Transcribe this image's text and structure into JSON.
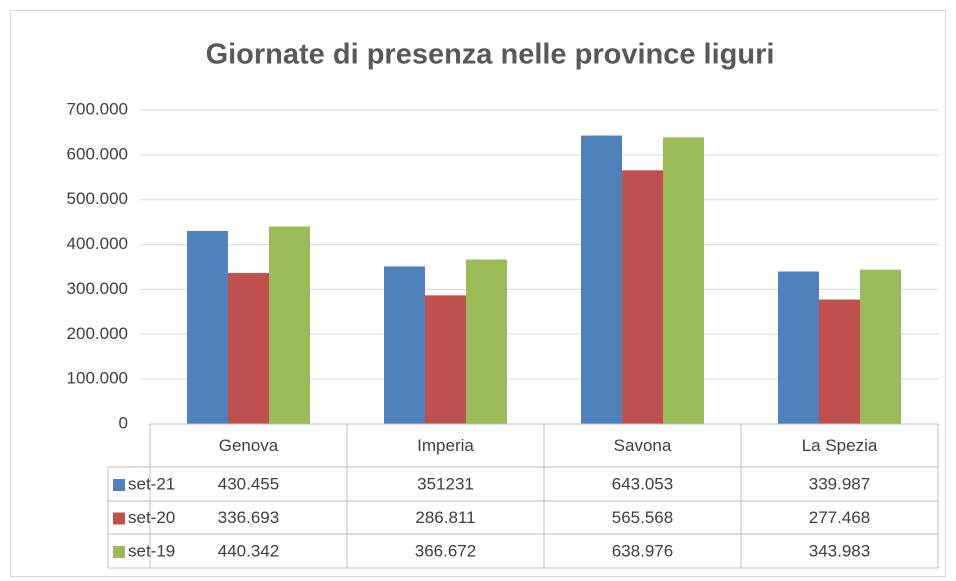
{
  "chart_data": {
    "type": "bar",
    "title": "Giornate di presenza nelle province liguri",
    "categories": [
      "Genova",
      "Imperia",
      "Savona",
      "La Spezia"
    ],
    "series": [
      {
        "name": "set-21",
        "color": "#4f81bd",
        "values": [
          430455,
          351231,
          643053,
          339987
        ],
        "value_labels": [
          "430.455",
          "351231",
          "643.053",
          "339.987"
        ]
      },
      {
        "name": "set-20",
        "color": "#c0504d",
        "values": [
          336693,
          286811,
          565568,
          277468
        ],
        "value_labels": [
          "336.693",
          "286.811",
          "565.568",
          "277.468"
        ]
      },
      {
        "name": "set-19",
        "color": "#9bbb59",
        "values": [
          440342,
          366672,
          638976,
          343983
        ],
        "value_labels": [
          "440.342",
          "366.672",
          "638.976",
          "343.983"
        ]
      }
    ],
    "ylim": [
      0,
      700000
    ],
    "yticks": [
      0,
      {
        "value": 100000,
        "label": "100.000"
      },
      {
        "value": 200000,
        "label": "200.000"
      },
      {
        "value": 300000,
        "label": "300.000"
      },
      {
        "value": 400000,
        "label": "400.000"
      },
      {
        "value": 500000,
        "label": "500.000"
      },
      {
        "value": 600000,
        "label": "600.000"
      },
      {
        "value": 700000,
        "label": "700.000"
      }
    ],
    "grid": true
  }
}
